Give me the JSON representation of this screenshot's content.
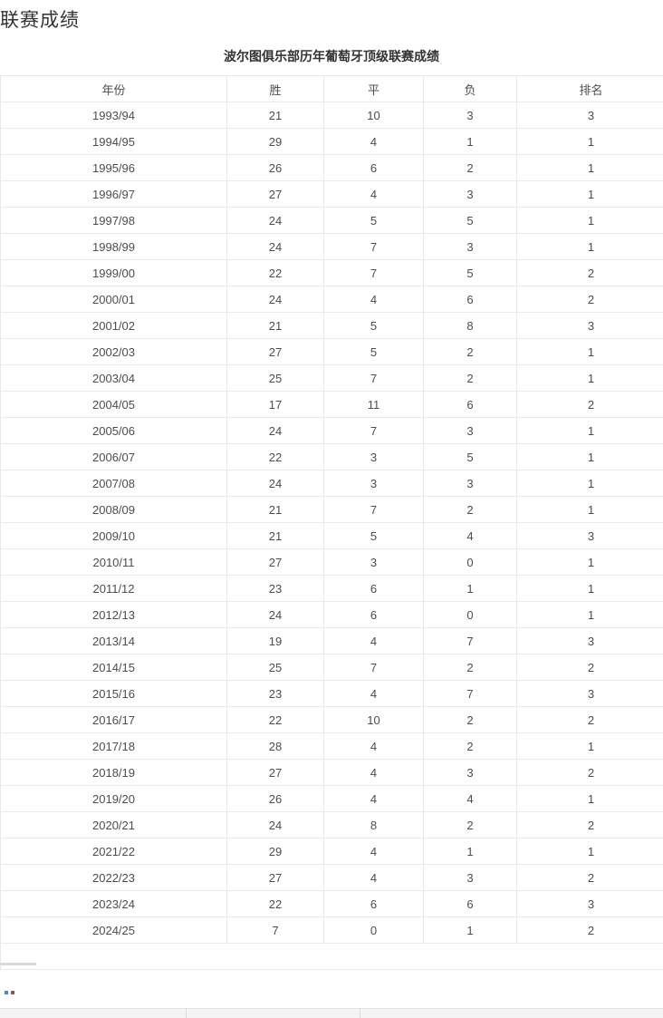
{
  "page": {
    "heading": "联赛成绩"
  },
  "league_table": {
    "title": "波尔图俱乐部历年葡萄牙顶级联赛成绩",
    "columns": [
      "年份",
      "胜",
      "平",
      "负",
      "排名"
    ],
    "rows": [
      [
        "1993/94",
        "21",
        "10",
        "3",
        "3"
      ],
      [
        "1994/95",
        "29",
        "4",
        "1",
        "1"
      ],
      [
        "1995/96",
        "26",
        "6",
        "2",
        "1"
      ],
      [
        "1996/97",
        "27",
        "4",
        "3",
        "1"
      ],
      [
        "1997/98",
        "24",
        "5",
        "5",
        "1"
      ],
      [
        "1998/99",
        "24",
        "7",
        "3",
        "1"
      ],
      [
        "1999/00",
        "22",
        "7",
        "5",
        "2"
      ],
      [
        "2000/01",
        "24",
        "4",
        "6",
        "2"
      ],
      [
        "2001/02",
        "21",
        "5",
        "8",
        "3"
      ],
      [
        "2002/03",
        "27",
        "5",
        "2",
        "1"
      ],
      [
        "2003/04",
        "25",
        "7",
        "2",
        "1"
      ],
      [
        "2004/05",
        "17",
        "11",
        "6",
        "2"
      ],
      [
        "2005/06",
        "24",
        "7",
        "3",
        "1"
      ],
      [
        "2006/07",
        "22",
        "3",
        "5",
        "1"
      ],
      [
        "2007/08",
        "24",
        "3",
        "3",
        "1"
      ],
      [
        "2008/09",
        "21",
        "7",
        "2",
        "1"
      ],
      [
        "2009/10",
        "21",
        "5",
        "4",
        "3"
      ],
      [
        "2010/11",
        "27",
        "3",
        "0",
        "1"
      ],
      [
        "2011/12",
        "23",
        "6",
        "1",
        "1"
      ],
      [
        "2012/13",
        "24",
        "6",
        "0",
        "1"
      ],
      [
        "2013/14",
        "19",
        "4",
        "7",
        "3"
      ],
      [
        "2014/15",
        "25",
        "7",
        "2",
        "2"
      ],
      [
        "2015/16",
        "23",
        "4",
        "7",
        "3"
      ],
      [
        "2016/17",
        "22",
        "10",
        "2",
        "2"
      ],
      [
        "2017/18",
        "28",
        "4",
        "2",
        "1"
      ],
      [
        "2018/19",
        "27",
        "4",
        "3",
        "2"
      ],
      [
        "2019/20",
        "26",
        "4",
        "4",
        "1"
      ],
      [
        "2020/21",
        "24",
        "8",
        "2",
        "2"
      ],
      [
        "2021/22",
        "29",
        "4",
        "1",
        "1"
      ],
      [
        "2022/23",
        "27",
        "4",
        "3",
        "2"
      ],
      [
        "2023/24",
        "22",
        "6",
        "6",
        "3"
      ],
      [
        "2024/25",
        "7",
        "0",
        "1",
        "2"
      ]
    ]
  },
  "colors": {
    "heading_text": "#333333",
    "cell_text": "#4d4d4d",
    "table_border": "#e9e9e9",
    "partial_header_bg": "#f4f4f4",
    "dot_blue": "#4f8ccb",
    "dot_brown": "#8a5a50"
  }
}
